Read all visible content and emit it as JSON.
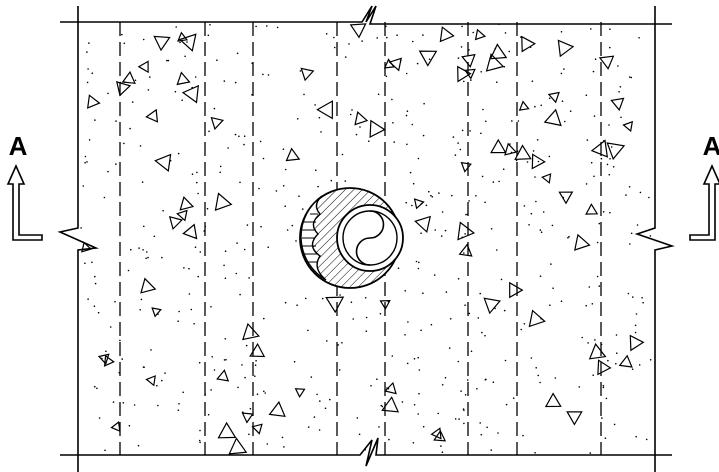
{
  "section_marks": {
    "left": "A",
    "right": "A"
  }
}
